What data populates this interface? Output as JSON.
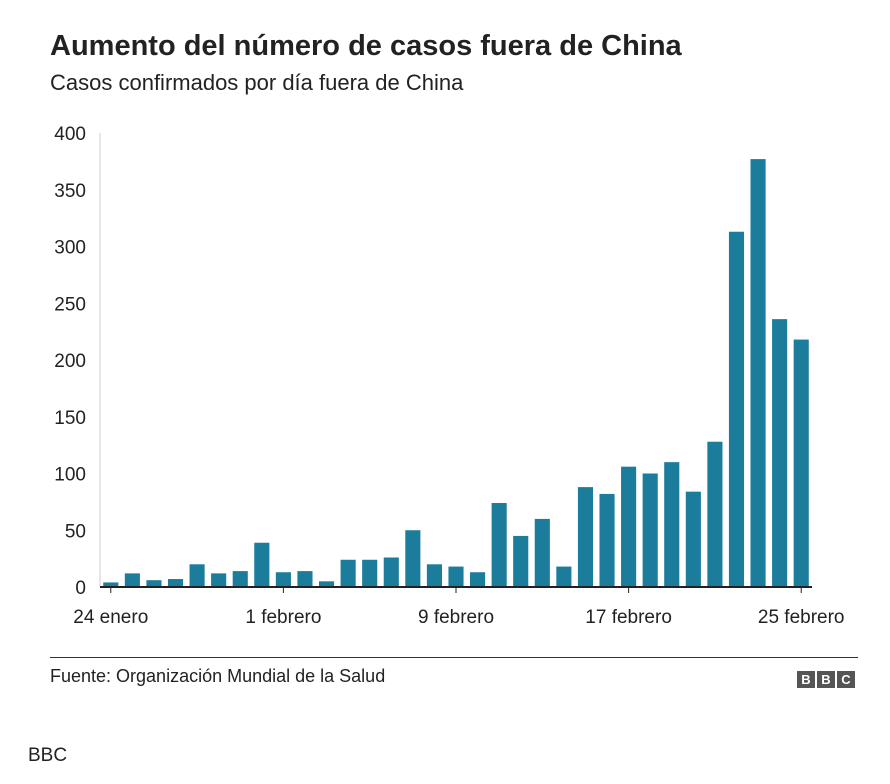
{
  "chart_data": {
    "type": "bar",
    "title": "Aumento del número de casos fuera de China",
    "subtitle": "Casos confirmados por día fuera de China",
    "xlabel": "",
    "ylabel": "",
    "ylim": [
      0,
      400
    ],
    "yticks": [
      0,
      50,
      100,
      150,
      200,
      250,
      300,
      350,
      400
    ],
    "xtick_labels": [
      {
        "index": 0,
        "label": "24 enero"
      },
      {
        "index": 8,
        "label": "1 febrero"
      },
      {
        "index": 16,
        "label": "9 febrero"
      },
      {
        "index": 24,
        "label": "17 febrero"
      },
      {
        "index": 32,
        "label": "25 febrero"
      }
    ],
    "categories": [
      "24 enero",
      "25 enero",
      "26 enero",
      "27 enero",
      "28 enero",
      "29 enero",
      "30 enero",
      "31 enero",
      "1 febrero",
      "2 febrero",
      "3 febrero",
      "4 febrero",
      "5 febrero",
      "6 febrero",
      "7 febrero",
      "8 febrero",
      "9 febrero",
      "10 febrero",
      "11 febrero",
      "12 febrero",
      "13 febrero",
      "14 febrero",
      "15 febrero",
      "16 febrero",
      "17 febrero",
      "18 febrero",
      "19 febrero",
      "20 febrero",
      "21 febrero",
      "22 febrero",
      "23 febrero",
      "24 febrero",
      "25 febrero"
    ],
    "values": [
      4,
      12,
      6,
      7,
      20,
      12,
      14,
      39,
      13,
      14,
      5,
      24,
      24,
      26,
      50,
      20,
      18,
      13,
      74,
      45,
      60,
      18,
      88,
      82,
      106,
      100,
      110,
      84,
      128,
      313,
      377,
      236,
      218
    ],
    "bar_color": "#1b7c9b",
    "grid": false
  },
  "footer": {
    "source": "Fuente: Organización Mundial de la Salud",
    "logo_letters": [
      "B",
      "B",
      "C"
    ]
  },
  "credit": "BBC"
}
